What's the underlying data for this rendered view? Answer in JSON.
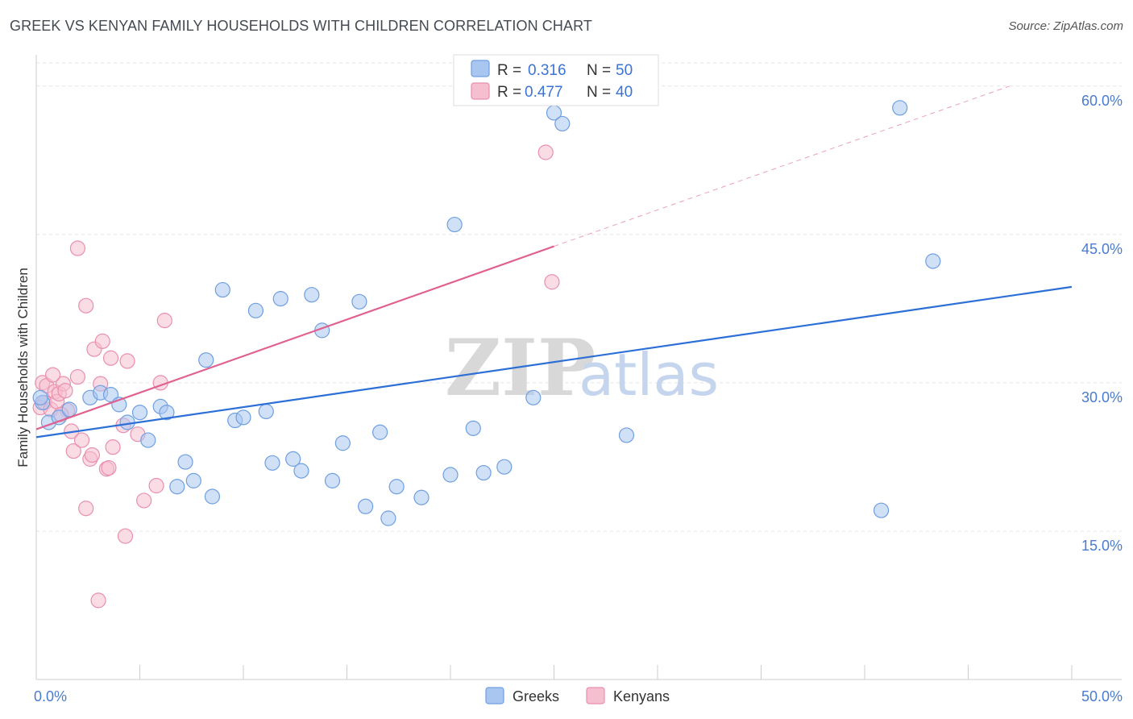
{
  "title": "GREEK VS KENYAN FAMILY HOUSEHOLDS WITH CHILDREN CORRELATION CHART",
  "source": "Source: ZipAtlas.com",
  "watermark": {
    "zip": "ZIP",
    "atlas": "atlas"
  },
  "legend": {
    "r_label": "R =",
    "n_label": "N =",
    "greeks": {
      "r": "0.316",
      "n": "50"
    },
    "kenyans": {
      "r": "0.477",
      "n": "40"
    }
  },
  "bottom_legend": {
    "greeks": "Greeks",
    "kenyans": "Kenyans"
  },
  "colors": {
    "greeks_fill": "#a9c6f0",
    "greeks_stroke": "#6f9fe0",
    "greeks_line": "#2c6fd6",
    "kenyans_fill": "#f6bfd0",
    "kenyans_stroke": "#ea8fae",
    "kenyans_line": "#e0608f",
    "axis_label": "#4a7bd0"
  },
  "chart_data": {
    "type": "scatter",
    "title": "GREEK VS KENYAN FAMILY HOUSEHOLDS WITH CHILDREN CORRELATION CHART",
    "xlabel": "",
    "ylabel": "Family Households with Children",
    "xlim": [
      0,
      50
    ],
    "ylim": [
      0,
      63
    ],
    "x_tick_labels": [
      "0.0%",
      "50.0%"
    ],
    "y_ticks": [
      15,
      30,
      45,
      60
    ],
    "y_tick_labels": [
      "15.0%",
      "30.0%",
      "45.0%",
      "60.0%"
    ],
    "grid": true,
    "series": [
      {
        "name": "Greeks",
        "r": 0.316,
        "n": 50,
        "trend": {
          "x0": 0,
          "y0": 24.5,
          "x1": 50,
          "y1": 39.7
        },
        "points": [
          [
            0.3,
            28.0
          ],
          [
            0.6,
            26.0
          ],
          [
            1.1,
            26.5
          ],
          [
            1.6,
            27.3
          ],
          [
            2.6,
            28.5
          ],
          [
            3.1,
            29.0
          ],
          [
            3.6,
            28.8
          ],
          [
            4.0,
            27.8
          ],
          [
            4.4,
            26.0
          ],
          [
            5.0,
            27.0
          ],
          [
            5.4,
            24.2
          ],
          [
            6.0,
            27.6
          ],
          [
            6.3,
            27.0
          ],
          [
            6.8,
            19.5
          ],
          [
            7.2,
            22.0
          ],
          [
            7.6,
            20.1
          ],
          [
            8.2,
            32.3
          ],
          [
            8.5,
            18.5
          ],
          [
            9.0,
            39.4
          ],
          [
            9.6,
            26.2
          ],
          [
            10.0,
            26.5
          ],
          [
            10.6,
            37.3
          ],
          [
            11.1,
            27.1
          ],
          [
            11.4,
            21.9
          ],
          [
            11.8,
            38.5
          ],
          [
            12.4,
            22.3
          ],
          [
            12.8,
            21.1
          ],
          [
            13.3,
            38.9
          ],
          [
            13.8,
            35.3
          ],
          [
            14.3,
            20.1
          ],
          [
            14.8,
            23.9
          ],
          [
            15.6,
            38.2
          ],
          [
            15.9,
            17.5
          ],
          [
            16.6,
            25.0
          ],
          [
            17.0,
            16.3
          ],
          [
            17.4,
            19.5
          ],
          [
            18.6,
            18.4
          ],
          [
            20.0,
            20.7
          ],
          [
            20.2,
            46.0
          ],
          [
            21.1,
            25.4
          ],
          [
            21.6,
            20.9
          ],
          [
            22.6,
            21.5
          ],
          [
            24.0,
            28.5
          ],
          [
            25.0,
            57.3
          ],
          [
            25.4,
            56.2
          ],
          [
            28.5,
            24.7
          ],
          [
            40.8,
            17.1
          ],
          [
            41.7,
            57.8
          ],
          [
            43.3,
            42.3
          ],
          [
            0.2,
            28.5
          ]
        ]
      },
      {
        "name": "Kenyans",
        "r": 0.477,
        "n": 40,
        "trend": {
          "x0": 0,
          "y0": 25.3,
          "x1": 25.0,
          "y1": 43.8,
          "dash_x1": 47.0,
          "dash_y1": 60.0
        },
        "points": [
          [
            0.2,
            27.5
          ],
          [
            0.3,
            30.0
          ],
          [
            0.4,
            28.0
          ],
          [
            0.5,
            29.7
          ],
          [
            0.7,
            27.3
          ],
          [
            0.9,
            29.1
          ],
          [
            1.0,
            28.1
          ],
          [
            1.1,
            28.9
          ],
          [
            1.3,
            29.9
          ],
          [
            1.4,
            29.2
          ],
          [
            1.5,
            27.2
          ],
          [
            1.7,
            25.1
          ],
          [
            1.8,
            23.1
          ],
          [
            2.0,
            43.6
          ],
          [
            2.0,
            30.6
          ],
          [
            2.2,
            24.2
          ],
          [
            2.4,
            37.8
          ],
          [
            2.4,
            17.3
          ],
          [
            2.6,
            22.3
          ],
          [
            2.7,
            22.7
          ],
          [
            2.8,
            33.4
          ],
          [
            3.0,
            8.0
          ],
          [
            3.1,
            29.9
          ],
          [
            3.2,
            34.2
          ],
          [
            3.4,
            21.3
          ],
          [
            3.5,
            21.4
          ],
          [
            3.6,
            32.5
          ],
          [
            3.7,
            23.5
          ],
          [
            4.2,
            25.7
          ],
          [
            4.3,
            14.5
          ],
          [
            4.4,
            32.2
          ],
          [
            4.9,
            24.8
          ],
          [
            5.2,
            18.1
          ],
          [
            5.8,
            19.6
          ],
          [
            6.0,
            30.0
          ],
          [
            6.2,
            36.3
          ],
          [
            24.6,
            53.3
          ],
          [
            24.9,
            40.2
          ],
          [
            1.2,
            26.8
          ],
          [
            0.8,
            30.8
          ]
        ]
      }
    ]
  }
}
